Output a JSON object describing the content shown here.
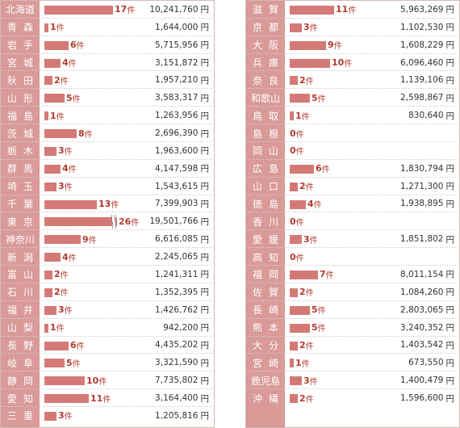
{
  "chart_data": {
    "type": "bar",
    "count_suffix": "件",
    "amount_suffix": "円",
    "accent_color": "#d47a76",
    "count_label_color": "#b23a2e",
    "name_column_color": "#d99a98",
    "panels": [
      {
        "rows": [
          {
            "pref": "北海道",
            "count": 17,
            "amount": "10,241,760"
          },
          {
            "pref": "青 森",
            "count": 1,
            "amount": "1,644,000"
          },
          {
            "pref": "岩 手",
            "count": 6,
            "amount": "5,715,956"
          },
          {
            "pref": "宮 城",
            "count": 4,
            "amount": "3,151,872"
          },
          {
            "pref": "秋 田",
            "count": 2,
            "amount": "1,957,210"
          },
          {
            "pref": "山 形",
            "count": 5,
            "amount": "3,583,317"
          },
          {
            "pref": "福 島",
            "count": 1,
            "amount": "1,263,956"
          },
          {
            "pref": "茨 城",
            "count": 8,
            "amount": "2,696,390"
          },
          {
            "pref": "栃 木",
            "count": 3,
            "amount": "1,963,600"
          },
          {
            "pref": "群 馬",
            "count": 4,
            "amount": "4,147,598"
          },
          {
            "pref": "埼 玉",
            "count": 3,
            "amount": "1,543,615"
          },
          {
            "pref": "千 葉",
            "count": 13,
            "amount": "7,399,903"
          },
          {
            "pref": "東 京",
            "count": 26,
            "amount": "19,501,766",
            "broken": true
          },
          {
            "pref": "神奈川",
            "count": 9,
            "amount": "6,616,085"
          },
          {
            "pref": "新 潟",
            "count": 4,
            "amount": "2,245,065"
          },
          {
            "pref": "富 山",
            "count": 2,
            "amount": "1,241,311"
          },
          {
            "pref": "石 川",
            "count": 2,
            "amount": "1,352,395"
          },
          {
            "pref": "福 井",
            "count": 3,
            "amount": "1,426,762"
          },
          {
            "pref": "山 梨",
            "count": 1,
            "amount": "942,200"
          },
          {
            "pref": "長 野",
            "count": 6,
            "amount": "4,435,202"
          },
          {
            "pref": "岐 阜",
            "count": 5,
            "amount": "3,321,590"
          },
          {
            "pref": "静 岡",
            "count": 10,
            "amount": "7,735,802"
          },
          {
            "pref": "愛 知",
            "count": 11,
            "amount": "3,164,400"
          },
          {
            "pref": "三 重",
            "count": 3,
            "amount": "1,205,816"
          }
        ]
      },
      {
        "rows": [
          {
            "pref": "滋 賀",
            "count": 11,
            "amount": "5,963,269"
          },
          {
            "pref": "京 都",
            "count": 3,
            "amount": "1,102,530"
          },
          {
            "pref": "大 阪",
            "count": 9,
            "amount": "1,608,229"
          },
          {
            "pref": "兵 庫",
            "count": 10,
            "amount": "6,096,460"
          },
          {
            "pref": "奈 良",
            "count": 2,
            "amount": "1,139,106"
          },
          {
            "pref": "和歌山",
            "count": 5,
            "amount": "2,598,867"
          },
          {
            "pref": "鳥 取",
            "count": 1,
            "amount": "830,640"
          },
          {
            "pref": "島 根",
            "count": 0,
            "amount": ""
          },
          {
            "pref": "岡 山",
            "count": 0,
            "amount": ""
          },
          {
            "pref": "広 島",
            "count": 6,
            "amount": "1,830,794"
          },
          {
            "pref": "山 口",
            "count": 2,
            "amount": "1,271,300"
          },
          {
            "pref": "徳 島",
            "count": 4,
            "amount": "1,938,895"
          },
          {
            "pref": "香 川",
            "count": 0,
            "amount": ""
          },
          {
            "pref": "愛 媛",
            "count": 3,
            "amount": "1,851,802"
          },
          {
            "pref": "高 知",
            "count": 0,
            "amount": ""
          },
          {
            "pref": "福 岡",
            "count": 7,
            "amount": "8,011,154"
          },
          {
            "pref": "佐 賀",
            "count": 2,
            "amount": "1,084,260"
          },
          {
            "pref": "長 崎",
            "count": 5,
            "amount": "2,803,065"
          },
          {
            "pref": "熊 本",
            "count": 5,
            "amount": "3,240,352"
          },
          {
            "pref": "大 分",
            "count": 2,
            "amount": "1,403,542"
          },
          {
            "pref": "宮 崎",
            "count": 1,
            "amount": "673,550"
          },
          {
            "pref": "鹿児島",
            "count": 3,
            "amount": "1,400,479"
          },
          {
            "pref": "沖 縄",
            "count": 2,
            "amount": "1,596,600"
          }
        ]
      }
    ]
  }
}
